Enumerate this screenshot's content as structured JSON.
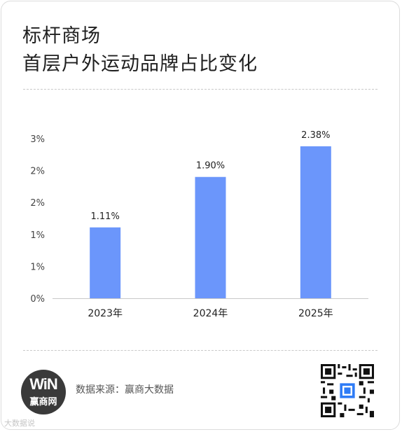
{
  "title_line1": "标杆商场",
  "title_line2": "首层户外运动品牌占比变化",
  "chart_data": {
    "type": "bar",
    "categories": [
      "2023年",
      "2024年",
      "2025年"
    ],
    "values": [
      1.11,
      1.9,
      2.38
    ],
    "value_labels": [
      "1.11%",
      "1.90%",
      "2.38%"
    ],
    "ytick_labels": [
      "0%",
      "1%",
      "1%",
      "2%",
      "2%",
      "3%"
    ],
    "ytick_values": [
      0,
      0.5,
      1.0,
      1.5,
      2.0,
      2.5
    ],
    "ylim": [
      0,
      2.5
    ],
    "bar_color": "#6b96fb",
    "grid": false,
    "legend": "none",
    "xlabel": "",
    "ylabel": ""
  },
  "footer": {
    "source_text": "数据来源：赢商大数据",
    "logo_text": "赢商网",
    "logo_mark": "WiN",
    "watermark": "大数据说"
  }
}
